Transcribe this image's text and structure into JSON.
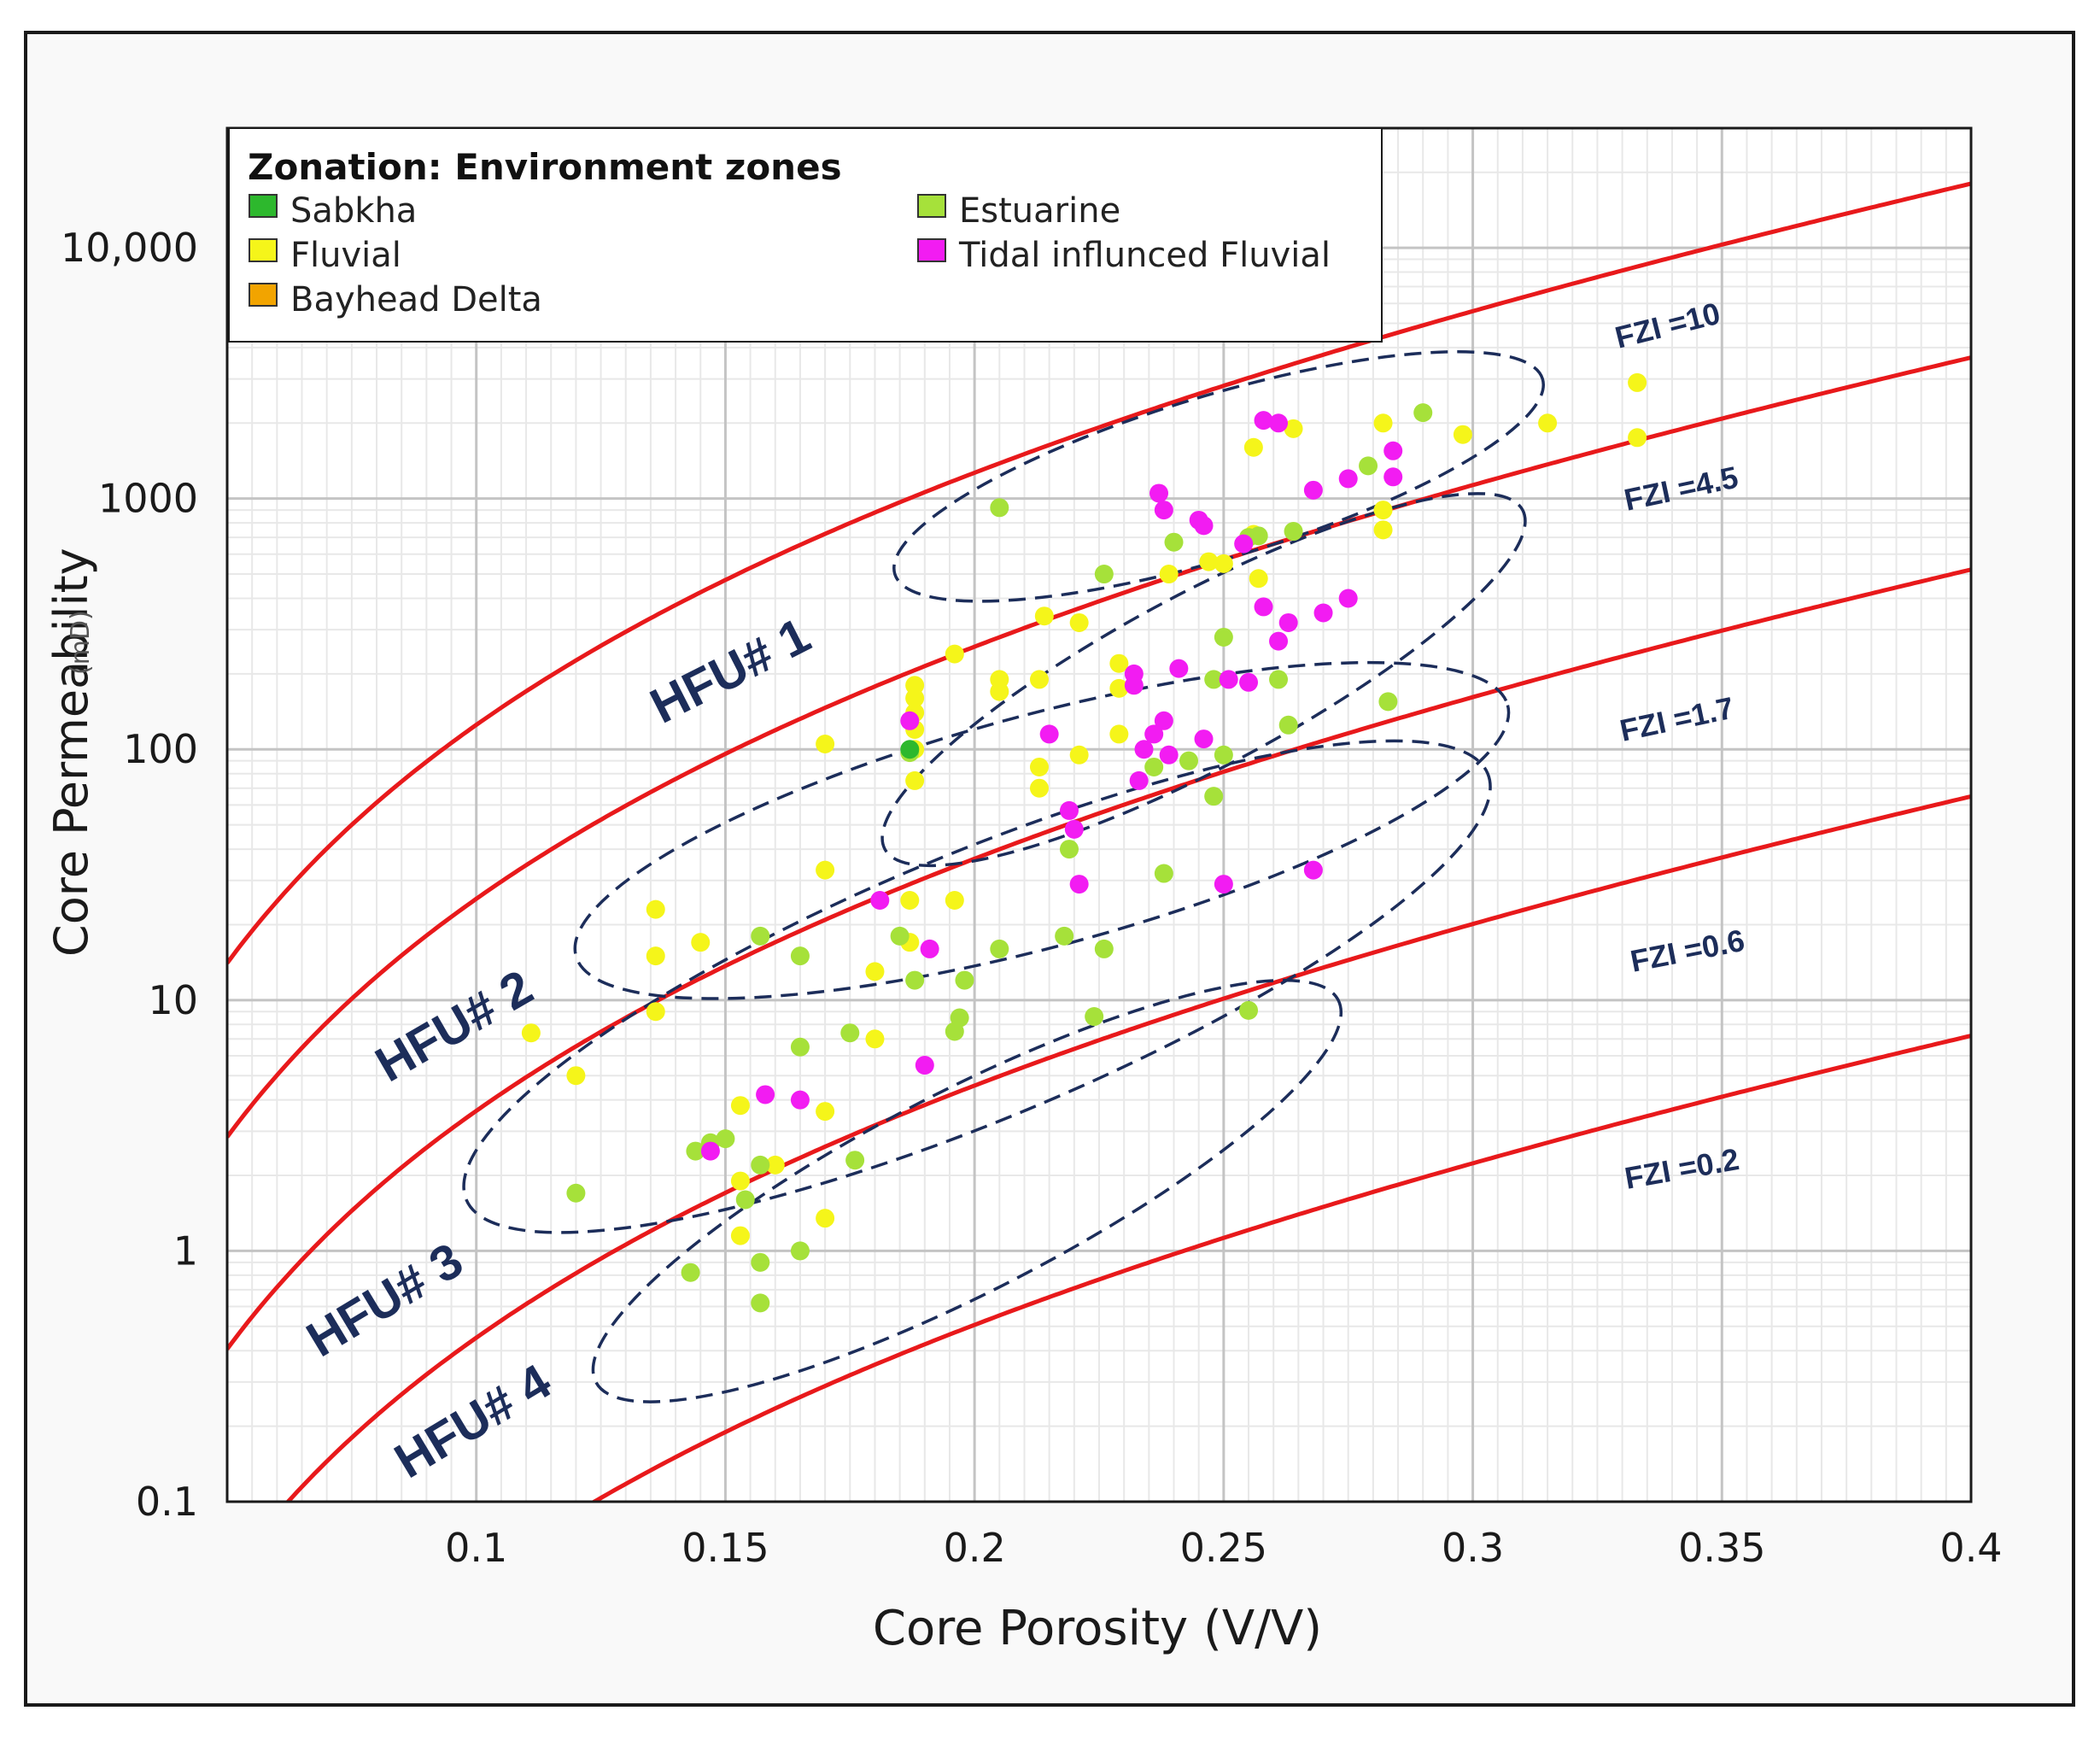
{
  "chart_data": {
    "type": "scatter",
    "title": "",
    "xlabel": "Core Porosity (V/V)",
    "ylabel": "Core Permeability",
    "ylabel_unit": "(mD)",
    "xlim": [
      0.05,
      0.4
    ],
    "ylim": [
      0.1,
      30000
    ],
    "yscale": "log",
    "grid": true,
    "x_ticks": [
      "0.1",
      "0.15",
      "0.2",
      "0.25",
      "0.3",
      "0.35",
      "0.4"
    ],
    "y_ticks": [
      "0.1",
      "1",
      "10",
      "100",
      "1000",
      "10,000"
    ],
    "legend": {
      "title": "Zonation: Environment zones",
      "placement": "top-left",
      "items": [
        {
          "label": "Sabkha",
          "color": "#2db82d"
        },
        {
          "label": "Estuarine",
          "color": "#a6e13a"
        },
        {
          "label": "Fluvial",
          "color": "#f5f51a"
        },
        {
          "label": "Tidal influnced Fluvial",
          "color": "#f21cf2"
        },
        {
          "label": "Bayhead Delta",
          "color": "#f2a400"
        }
      ]
    },
    "fzi_curves": [
      {
        "label": "FZI =10",
        "fzi": 10
      },
      {
        "label": "FZI =4.5",
        "fzi": 4.5
      },
      {
        "label": "FZI =1.7",
        "fzi": 1.7
      },
      {
        "label": "FZI =0.6",
        "fzi": 0.6
      },
      {
        "label": "FZI =0.2",
        "fzi": 0.2
      }
    ],
    "hfu_labels": [
      "HFU# 1",
      "HFU# 2",
      "HFU# 3",
      "HFU# 4"
    ],
    "hfu_ellipses": [
      {
        "x": [
          0.184,
          0.314
        ],
        "y": [
          500,
          3000
        ]
      },
      {
        "x": [
          0.182,
          0.31
        ],
        "y": [
          40,
          900
        ]
      },
      {
        "x": [
          0.12,
          0.307
        ],
        "y": [
          15,
          150
        ]
      },
      {
        "x": [
          0.098,
          0.303
        ],
        "y": [
          1.6,
          80
        ]
      },
      {
        "x": [
          0.124,
          0.273
        ],
        "y": [
          0.3,
          10
        ]
      }
    ],
    "series": [
      {
        "name": "Fluvial",
        "points": [
          [
            0.333,
            2900
          ],
          [
            0.333,
            1750
          ],
          [
            0.315,
            2000
          ],
          [
            0.298,
            1800
          ],
          [
            0.282,
            2000
          ],
          [
            0.282,
            900
          ],
          [
            0.282,
            750
          ],
          [
            0.264,
            1900
          ],
          [
            0.256,
            1600
          ],
          [
            0.256,
            720
          ],
          [
            0.257,
            480
          ],
          [
            0.25,
            550
          ],
          [
            0.247,
            560
          ],
          [
            0.239,
            500
          ],
          [
            0.229,
            220
          ],
          [
            0.229,
            175
          ],
          [
            0.229,
            115
          ],
          [
            0.221,
            320
          ],
          [
            0.221,
            95
          ],
          [
            0.214,
            340
          ],
          [
            0.213,
            190
          ],
          [
            0.213,
            85
          ],
          [
            0.213,
            70
          ],
          [
            0.205,
            190
          ],
          [
            0.205,
            170
          ],
          [
            0.196,
            240
          ],
          [
            0.188,
            180
          ],
          [
            0.188,
            160
          ],
          [
            0.188,
            140
          ],
          [
            0.188,
            120
          ],
          [
            0.188,
            100
          ],
          [
            0.188,
            75
          ],
          [
            0.187,
            25
          ],
          [
            0.187,
            17
          ],
          [
            0.196,
            25
          ],
          [
            0.18,
            13
          ],
          [
            0.18,
            7
          ],
          [
            0.17,
            105
          ],
          [
            0.17,
            33
          ],
          [
            0.17,
            3.6
          ],
          [
            0.17,
            1.35
          ],
          [
            0.16,
            2.2
          ],
          [
            0.153,
            3.8
          ],
          [
            0.153,
            1.9
          ],
          [
            0.153,
            1.15
          ],
          [
            0.145,
            17
          ],
          [
            0.136,
            23
          ],
          [
            0.136,
            15
          ],
          [
            0.136,
            9
          ],
          [
            0.111,
            7.4
          ],
          [
            0.12,
            5
          ]
        ]
      },
      {
        "name": "Estuarine",
        "points": [
          [
            0.29,
            2200
          ],
          [
            0.279,
            1350
          ],
          [
            0.283,
            155
          ],
          [
            0.264,
            740
          ],
          [
            0.255,
            700
          ],
          [
            0.257,
            710
          ],
          [
            0.24,
            670
          ],
          [
            0.205,
            920
          ],
          [
            0.226,
            500
          ],
          [
            0.25,
            280
          ],
          [
            0.25,
            95
          ],
          [
            0.248,
            190
          ],
          [
            0.261,
            190
          ],
          [
            0.263,
            125
          ],
          [
            0.243,
            90
          ],
          [
            0.236,
            85
          ],
          [
            0.238,
            32
          ],
          [
            0.248,
            65
          ],
          [
            0.226,
            16
          ],
          [
            0.218,
            18
          ],
          [
            0.224,
            8.6
          ],
          [
            0.219,
            40
          ],
          [
            0.205,
            16
          ],
          [
            0.198,
            12
          ],
          [
            0.197,
            8.5
          ],
          [
            0.196,
            7.5
          ],
          [
            0.188,
            12
          ],
          [
            0.185,
            18
          ],
          [
            0.187,
            97
          ],
          [
            0.175,
            7.4
          ],
          [
            0.176,
            2.3
          ],
          [
            0.165,
            6.5
          ],
          [
            0.165,
            15
          ],
          [
            0.165,
            1
          ],
          [
            0.157,
            18
          ],
          [
            0.157,
            2.2
          ],
          [
            0.157,
            0.9
          ],
          [
            0.157,
            0.62
          ],
          [
            0.154,
            1.6
          ],
          [
            0.15,
            2.8
          ],
          [
            0.147,
            2.7
          ],
          [
            0.144,
            2.5
          ],
          [
            0.143,
            0.82
          ],
          [
            0.12,
            1.7
          ],
          [
            0.255,
            9.1
          ]
        ]
      },
      {
        "name": "Sabkha",
        "points": [
          [
            0.187,
            100
          ]
        ]
      },
      {
        "name": "Tidal influnced Fluvial",
        "points": [
          [
            0.258,
            2050
          ],
          [
            0.261,
            2000
          ],
          [
            0.284,
            1550
          ],
          [
            0.284,
            1220
          ],
          [
            0.275,
            1200
          ],
          [
            0.268,
            1080
          ],
          [
            0.237,
            1050
          ],
          [
            0.238,
            900
          ],
          [
            0.245,
            820
          ],
          [
            0.246,
            780
          ],
          [
            0.254,
            660
          ],
          [
            0.263,
            320
          ],
          [
            0.27,
            350
          ],
          [
            0.275,
            400
          ],
          [
            0.258,
            370
          ],
          [
            0.261,
            270
          ],
          [
            0.241,
            210
          ],
          [
            0.232,
            200
          ],
          [
            0.232,
            180
          ],
          [
            0.251,
            190
          ],
          [
            0.255,
            185
          ],
          [
            0.238,
            130
          ],
          [
            0.236,
            115
          ],
          [
            0.234,
            100
          ],
          [
            0.239,
            95
          ],
          [
            0.233,
            75
          ],
          [
            0.246,
            110
          ],
          [
            0.215,
            115
          ],
          [
            0.187,
            130
          ],
          [
            0.219,
            57
          ],
          [
            0.22,
            48
          ],
          [
            0.221,
            29
          ],
          [
            0.25,
            29
          ],
          [
            0.268,
            33
          ],
          [
            0.181,
            25
          ],
          [
            0.191,
            16
          ],
          [
            0.19,
            5.5
          ],
          [
            0.158,
            4.2
          ],
          [
            0.165,
            4
          ],
          [
            0.147,
            2.5
          ]
        ]
      },
      {
        "name": "Bayhead Delta",
        "points": []
      }
    ]
  }
}
